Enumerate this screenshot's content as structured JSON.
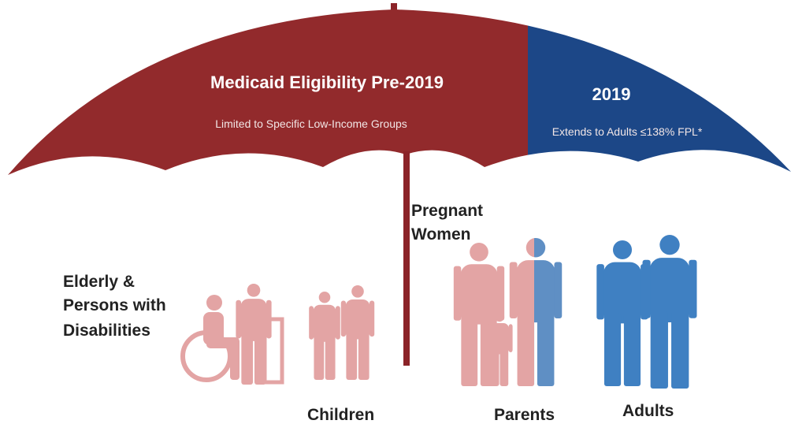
{
  "umbrella": {
    "left": {
      "title": "Medicaid Eligibility Pre-2019",
      "subtitle": "Limited to Specific Low-Income Groups"
    },
    "right": {
      "title": "2019",
      "subtitle": "Extends to Adults ≤138% FPL*"
    }
  },
  "groups": [
    {
      "label": [
        "Elderly &",
        "Persons with",
        "Disabilities"
      ]
    },
    {
      "label": [
        "Pregnant",
        "Women"
      ]
    },
    {
      "label": [
        "Children"
      ]
    },
    {
      "label": [
        "Parents"
      ]
    },
    {
      "label": [
        "Adults"
      ]
    }
  ]
}
